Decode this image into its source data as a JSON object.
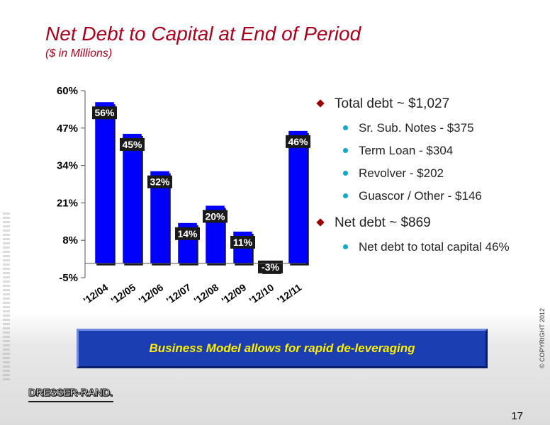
{
  "slide": {
    "title": "Net Debt to Capital at End of Period",
    "subtitle": "($ in Millions)",
    "page_number": "17",
    "copyright": "© COPYRIGHT 2012",
    "logo_text": "DRESSER-RAND."
  },
  "bullets": [
    {
      "text": "Total debt ~ $1,027",
      "sub": [
        "Sr. Sub. Notes - $375",
        "Term Loan - $304",
        "Revolver - $202",
        "Guascor / Other - $146"
      ]
    },
    {
      "text": "Net debt ~ $869",
      "sub": [
        "Net debt to total capital 46%"
      ]
    }
  ],
  "banner": {
    "text": "Business Model allows for rapid de-leveraging"
  },
  "colors": {
    "bar": "#0000ff",
    "title": "#a8001f",
    "banner_bg": "#1b3fb3",
    "banner_text": "#ffee00",
    "bullet_marker": "#9a0000",
    "sub_bullet_dot": "#1aa6c8"
  },
  "chart_data": {
    "type": "bar",
    "categories": [
      "'12/04",
      "'12/05",
      "'12/06",
      "'12/07",
      "'12/08",
      "'12/09",
      "'12/10",
      "'12/11"
    ],
    "values": [
      56,
      45,
      32,
      14,
      20,
      11,
      -3,
      46
    ],
    "data_labels": [
      "56%",
      "45%",
      "32%",
      "14%",
      "20%",
      "11%",
      "-3%",
      "46%"
    ],
    "yticks": [
      -5,
      8,
      21,
      34,
      47,
      60
    ],
    "ytick_labels": [
      "-5%",
      "8%",
      "21%",
      "34%",
      "47%",
      "60%"
    ],
    "ylim": [
      -5,
      60
    ],
    "xlabel": "",
    "ylabel": "",
    "grid": false
  }
}
